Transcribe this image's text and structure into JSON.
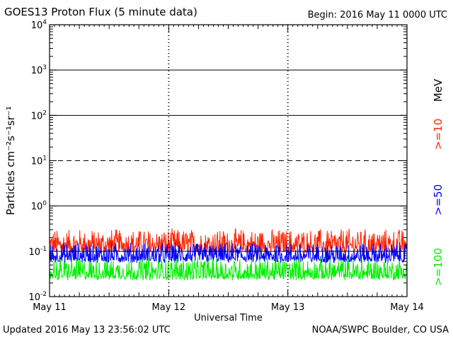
{
  "header": {
    "title": "GOES13 Proton Flux (5 minute data)",
    "begin": "Begin: 2016 May 11 0000 UTC"
  },
  "footer": {
    "updated": "Updated 2016 May 13 23:56:02 UTC",
    "credit": "NOAA/SWPC Boulder, CO USA"
  },
  "chart_data": {
    "type": "line",
    "title": "GOES13 Proton Flux (5 minute data)",
    "xlabel": "Universal Time",
    "ylabel": "Particles cm⁻²s⁻¹sr⁻¹",
    "y_scale": "log",
    "ylim": [
      0.01,
      10000
    ],
    "xlim_days": [
      0,
      3
    ],
    "x_tick_labels": [
      "May 11",
      "May 12",
      "May 13",
      "May 14"
    ],
    "y_tick_labels": [
      {
        "base": "10",
        "exp": "-2"
      },
      {
        "base": "10",
        "exp": "-1"
      },
      {
        "base": "10",
        "exp": "0"
      },
      {
        "base": "10",
        "exp": "1"
      },
      {
        "base": "10",
        "exp": "2"
      },
      {
        "base": "10",
        "exp": "3"
      },
      {
        "base": "10",
        "exp": "4"
      }
    ],
    "unit_label": "MeV",
    "threshold_lines": [
      {
        "value": 1,
        "style": "solid"
      },
      {
        "value": 10,
        "style": "dashed"
      },
      {
        "value": 100,
        "style": "solid"
      },
      {
        "value": 1000,
        "style": "solid"
      }
    ],
    "series": [
      {
        "name": ">=10",
        "color": "#ff2200",
        "typical_low": 0.1,
        "typical_high": 0.3
      },
      {
        "name": ">=50",
        "color": "#0000ff",
        "typical_low": 0.06,
        "typical_high": 0.15
      },
      {
        "name": ">=100",
        "color": "#00ee00",
        "typical_low": 0.025,
        "typical_high": 0.07
      }
    ],
    "colors": {
      "r10": "#ff2200",
      "r50": "#0000ff",
      "r100": "#00ee00"
    }
  }
}
